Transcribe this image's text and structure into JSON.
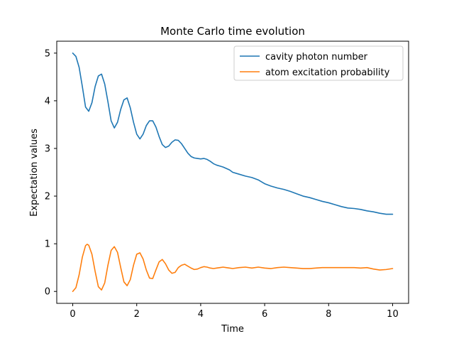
{
  "chart_data": {
    "type": "line",
    "title": "Monte Carlo time evolution",
    "xlabel": "Time",
    "ylabel": "Expectation values",
    "xlim": [
      -0.5,
      10.5
    ],
    "ylim": [
      -0.25,
      5.25
    ],
    "xticks": [
      0,
      2,
      4,
      6,
      8,
      10
    ],
    "yticks": [
      0,
      1,
      2,
      3,
      4,
      5
    ],
    "grid": false,
    "legend_position": "top-right",
    "series": [
      {
        "name": "cavity photon number",
        "color": "#1f77b4",
        "x": [
          0,
          0.1,
          0.2,
          0.3,
          0.4,
          0.5,
          0.6,
          0.7,
          0.8,
          0.9,
          1.0,
          1.1,
          1.2,
          1.3,
          1.4,
          1.5,
          1.6,
          1.7,
          1.8,
          1.9,
          2.0,
          2.1,
          2.2,
          2.3,
          2.4,
          2.5,
          2.6,
          2.7,
          2.8,
          2.9,
          3.0,
          3.1,
          3.2,
          3.3,
          3.4,
          3.5,
          3.6,
          3.7,
          3.8,
          3.9,
          4.0,
          4.1,
          4.2,
          4.3,
          4.4,
          4.5,
          4.6,
          4.7,
          4.8,
          4.9,
          5.0,
          5.2,
          5.4,
          5.6,
          5.8,
          6.0,
          6.2,
          6.4,
          6.6,
          6.8,
          7.0,
          7.2,
          7.4,
          7.6,
          7.8,
          8.0,
          8.2,
          8.4,
          8.6,
          8.8,
          9.0,
          9.2,
          9.4,
          9.6,
          9.8,
          10.0
        ],
        "y": [
          5.0,
          4.93,
          4.7,
          4.3,
          3.87,
          3.78,
          3.96,
          4.3,
          4.52,
          4.56,
          4.35,
          3.98,
          3.58,
          3.43,
          3.55,
          3.82,
          4.02,
          4.06,
          3.85,
          3.55,
          3.3,
          3.2,
          3.3,
          3.48,
          3.58,
          3.58,
          3.45,
          3.25,
          3.08,
          3.02,
          3.05,
          3.13,
          3.18,
          3.17,
          3.1,
          3.0,
          2.9,
          2.83,
          2.8,
          2.79,
          2.78,
          2.79,
          2.77,
          2.73,
          2.68,
          2.65,
          2.63,
          2.61,
          2.58,
          2.55,
          2.5,
          2.46,
          2.42,
          2.39,
          2.34,
          2.26,
          2.21,
          2.17,
          2.14,
          2.1,
          2.05,
          2.0,
          1.97,
          1.93,
          1.89,
          1.86,
          1.82,
          1.78,
          1.75,
          1.74,
          1.72,
          1.69,
          1.67,
          1.64,
          1.62,
          1.62
        ]
      },
      {
        "name": "atom excitation probability",
        "color": "#ff7f0e",
        "x": [
          0,
          0.1,
          0.2,
          0.3,
          0.4,
          0.45,
          0.5,
          0.6,
          0.7,
          0.8,
          0.9,
          1.0,
          1.1,
          1.2,
          1.3,
          1.4,
          1.5,
          1.6,
          1.7,
          1.8,
          1.9,
          2.0,
          2.1,
          2.2,
          2.3,
          2.4,
          2.5,
          2.6,
          2.7,
          2.8,
          2.9,
          3.0,
          3.1,
          3.2,
          3.3,
          3.4,
          3.5,
          3.6,
          3.7,
          3.8,
          3.9,
          4.0,
          4.1,
          4.2,
          4.3,
          4.4,
          4.5,
          4.6,
          4.7,
          4.8,
          4.9,
          5.0,
          5.2,
          5.4,
          5.6,
          5.8,
          6.0,
          6.2,
          6.4,
          6.6,
          6.8,
          7.0,
          7.2,
          7.4,
          7.6,
          7.8,
          8.0,
          8.2,
          8.4,
          8.6,
          8.8,
          9.0,
          9.2,
          9.4,
          9.6,
          9.8,
          10.0
        ],
        "y": [
          0.0,
          0.08,
          0.35,
          0.72,
          0.96,
          0.99,
          0.97,
          0.78,
          0.42,
          0.1,
          0.03,
          0.18,
          0.55,
          0.86,
          0.94,
          0.82,
          0.5,
          0.2,
          0.12,
          0.25,
          0.55,
          0.78,
          0.81,
          0.68,
          0.45,
          0.28,
          0.27,
          0.45,
          0.62,
          0.67,
          0.58,
          0.45,
          0.38,
          0.4,
          0.5,
          0.55,
          0.57,
          0.53,
          0.49,
          0.46,
          0.47,
          0.5,
          0.52,
          0.51,
          0.49,
          0.48,
          0.49,
          0.5,
          0.51,
          0.5,
          0.49,
          0.48,
          0.5,
          0.51,
          0.49,
          0.51,
          0.49,
          0.48,
          0.5,
          0.51,
          0.5,
          0.49,
          0.48,
          0.48,
          0.49,
          0.5,
          0.5,
          0.5,
          0.5,
          0.5,
          0.5,
          0.49,
          0.5,
          0.47,
          0.45,
          0.46,
          0.48
        ]
      }
    ]
  }
}
